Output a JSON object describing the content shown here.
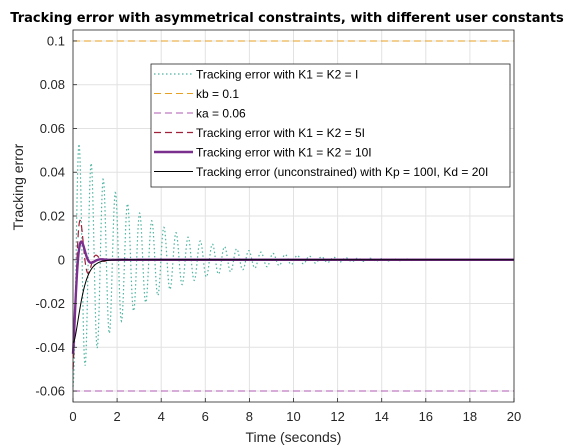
{
  "chart_data": {
    "type": "line",
    "title": "Tracking error with asymmetrical constraints, with different user constants",
    "xlabel": "Time (seconds)",
    "ylabel": "Tracking error",
    "xlim": [
      0,
      20
    ],
    "ylim": [
      -0.065,
      0.105
    ],
    "xticks": [
      0,
      2,
      4,
      6,
      8,
      10,
      12,
      14,
      16,
      18,
      20
    ],
    "xtick_labels": [
      "0",
      "2",
      "4",
      "6",
      "8",
      "10",
      "12",
      "14",
      "16",
      "18",
      "20"
    ],
    "yticks": [
      -0.06,
      -0.04,
      -0.02,
      0,
      0.02,
      0.04,
      0.06,
      0.08,
      0.1
    ],
    "ytick_labels": [
      "-0.06",
      "-0.04",
      "-0.02",
      "0",
      "0.02",
      "0.04",
      "0.06",
      "0.08",
      "0.1"
    ],
    "grid": true,
    "legend_position": "top-right",
    "series": [
      {
        "name": "Tracking error with K1 = K2 = I",
        "color": "#4db3a0",
        "style": "dotted",
        "width": 1.2,
        "model": {
          "A": -0.058,
          "decay": 0.33,
          "period": 0.55,
          "shift": 0
        }
      },
      {
        "name": "kb = 0.1",
        "color": "#e8a020",
        "style": "dashed",
        "width": 1,
        "constant": 0.1
      },
      {
        "name": "ka = 0.06",
        "color": "#b05ab0",
        "style": "dashed",
        "width": 1,
        "constant": -0.06
      },
      {
        "name": "Tracking error with K1 = K2 = 5I",
        "color": "#a02038",
        "style": "dashed",
        "width": 1.2,
        "model": {
          "A": -0.05,
          "decay": 3.0,
          "period": 0.72,
          "shift": 0
        }
      },
      {
        "name": "Tracking error with K1 = K2 = 10I",
        "color": "#7a2e8e",
        "style": "solid",
        "width": 2.4,
        "model": {
          "A": -0.043,
          "decay": 4.0,
          "period": 0.9,
          "shift": 0
        }
      },
      {
        "name": "Tracking error (unconstrained) with Kp = 100I, Kd = 20I",
        "color": "#000000",
        "style": "solid",
        "width": 1,
        "model": {
          "A": -0.038,
          "decay": 4.5,
          "period": 0,
          "shift": 0
        }
      }
    ]
  }
}
